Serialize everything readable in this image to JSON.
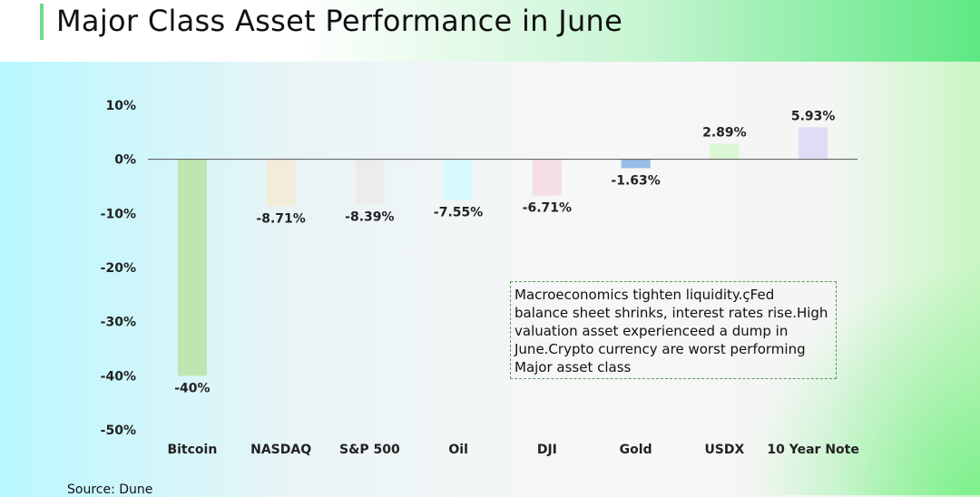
{
  "header": {
    "title": "Major Class Asset Performance in June"
  },
  "chart_data": {
    "type": "bar",
    "categories": [
      "Bitcoin",
      "NASDAQ",
      "S&P 500",
      "Oil",
      "DJI",
      "Gold",
      "USDX",
      "10 Year Note"
    ],
    "values": [
      -40,
      -8.71,
      -8.39,
      -7.55,
      -6.71,
      -1.63,
      2.89,
      5.93
    ],
    "value_labels": [
      "-40%",
      "-8.71%",
      "-8.39%",
      "-7.55%",
      "-6.71%",
      "-1.63%",
      "2.89%",
      "5.93%"
    ],
    "bar_colors": [
      "#bfe6b0",
      "#f2ecd8",
      "#ececec",
      "#d7fbfd",
      "#f5dde6",
      "#97bde6",
      "#dbf6d3",
      "#e1dcf6"
    ],
    "yticks": [
      10,
      0,
      -10,
      -20,
      -30,
      -40,
      -50
    ],
    "ytick_labels": [
      "10%",
      "0%",
      "-10%",
      "-20%",
      "-30%",
      "-40%",
      "-50%"
    ],
    "ylim": [
      -50,
      10
    ],
    "grid": false,
    "zero_line": true
  },
  "annotation": {
    "text": "Macroeconomics tighten liquidity.çFed balance sheet shrinks, interest rates rise.High valuation asset experienceed a dump in June.Crypto currency are worst performing Major asset class"
  },
  "footer": {
    "source": "Source:  Dune"
  }
}
